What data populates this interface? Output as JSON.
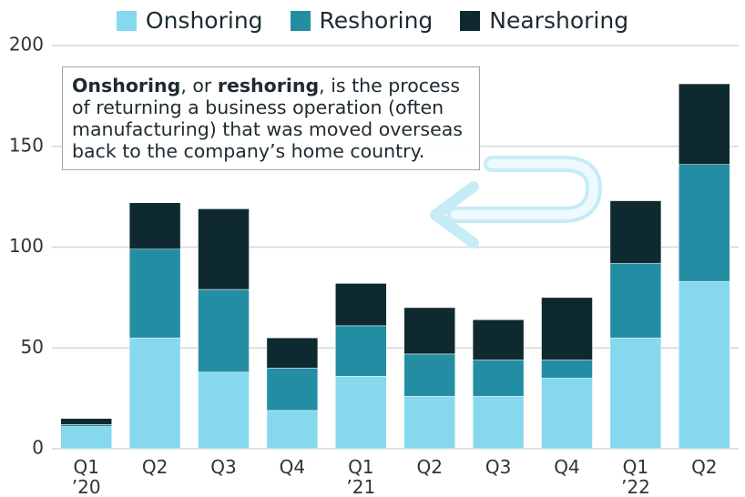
{
  "chart_data": {
    "type": "stacked_bar",
    "categories": [
      "Q1\n’20",
      "Q2",
      "Q3",
      "Q4",
      "Q1\n’21",
      "Q2",
      "Q3",
      "Q4",
      "Q1\n’22",
      "Q2"
    ],
    "series": [
      {
        "name": "Onshoring",
        "color": "#86d8ee",
        "values": [
          11,
          55,
          38,
          19,
          36,
          26,
          26,
          35,
          55,
          83
        ]
      },
      {
        "name": "Reshoring",
        "color": "#238ea3",
        "values": [
          1,
          44,
          41,
          21,
          25,
          21,
          18,
          9,
          37,
          58
        ]
      },
      {
        "name": "Nearshoring",
        "color": "#0e2a30",
        "values": [
          3,
          23,
          40,
          15,
          21,
          23,
          20,
          31,
          31,
          40
        ]
      }
    ],
    "ylim": [
      0,
      200
    ],
    "yticks": [
      0,
      50,
      100,
      150,
      200
    ],
    "grid": true,
    "annotation": [
      {
        "text": "Onshoring",
        "bold": true
      },
      {
        "text": ", or ",
        "bold": false
      },
      {
        "text": "reshoring",
        "bold": true
      },
      {
        "text": ", is the process of returning a business operation (often manufacturing) that was moved overseas back to the company’s home country.",
        "bold": false
      }
    ]
  }
}
